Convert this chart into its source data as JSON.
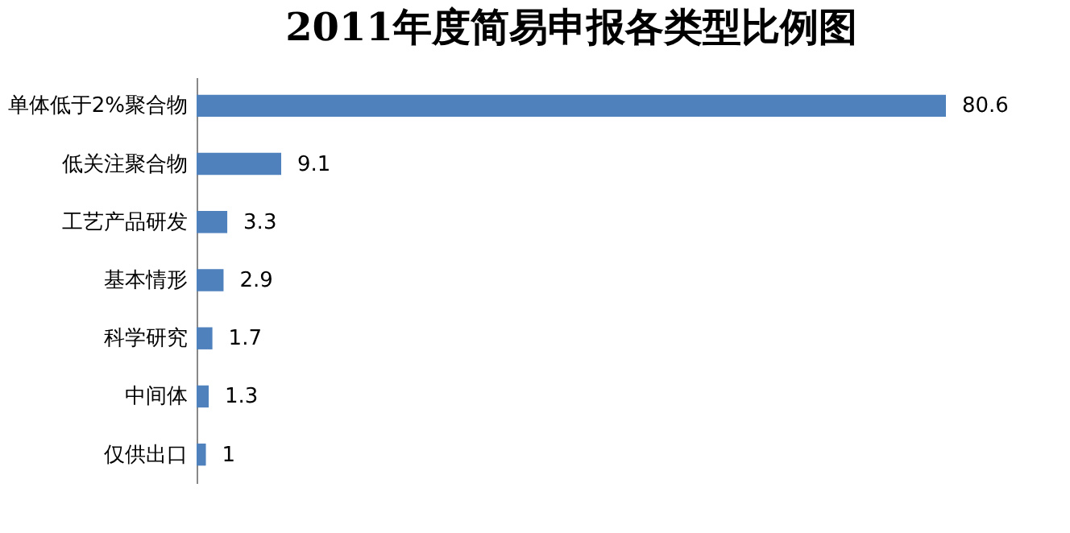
{
  "chart_data": {
    "type": "bar",
    "orientation": "horizontal",
    "title": "2011年度简易申报各类型比例图",
    "categories": [
      "单体低于2%聚合物",
      "低关注聚合物",
      "工艺产品研发",
      "基本情形",
      "科学研究",
      "中间体",
      "仅供出口"
    ],
    "values": [
      80.6,
      9.1,
      3.3,
      2.9,
      1.7,
      1.3,
      1
    ],
    "color": "#4f81bd",
    "data_labels": true,
    "tick_labels": "y",
    "grid": false
  }
}
